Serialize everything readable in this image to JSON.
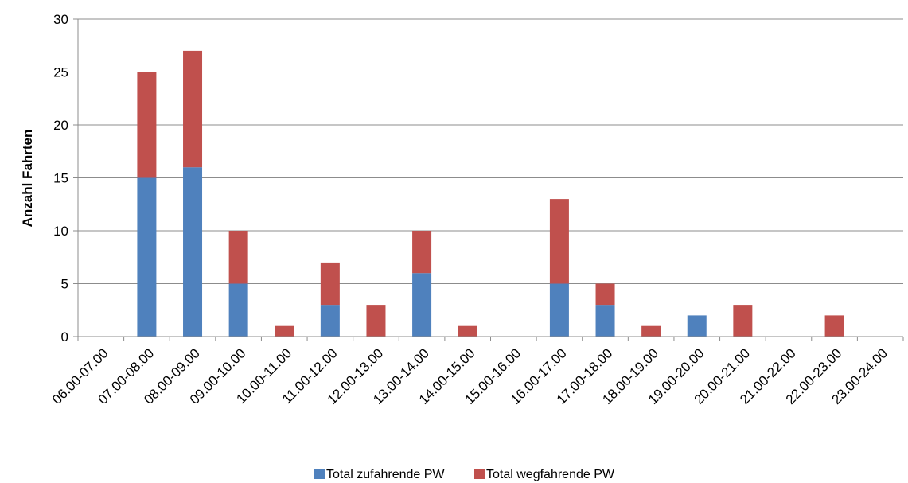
{
  "chart_data": {
    "type": "bar",
    "stacked": true,
    "categories": [
      "06.00-07.00",
      "07.00-08.00",
      "08.00-09.00",
      "09.00-10.00",
      "10.00-11.00",
      "11.00-12.00",
      "12.00-13.00",
      "13.00-14.00",
      "14.00-15.00",
      "15.00-16.00",
      "16.00-17.00",
      "17.00-18.00",
      "18.00-19.00",
      "19.00-20.00",
      "20.00-21.00",
      "21.00-22.00",
      "22.00-23.00",
      "23.00-24.00"
    ],
    "series": [
      {
        "name": "Total zufahrende PW",
        "color": "#4f81bd",
        "values": [
          0,
          15,
          16,
          5,
          0,
          3,
          0,
          6,
          0,
          0,
          5,
          3,
          0,
          2,
          0,
          0,
          0,
          0
        ]
      },
      {
        "name": "Total wegfahrende PW",
        "color": "#c0504d",
        "values": [
          0,
          10,
          11,
          5,
          1,
          4,
          3,
          4,
          1,
          0,
          8,
          2,
          1,
          0,
          3,
          0,
          2,
          0
        ]
      }
    ],
    "title": "",
    "xlabel": "",
    "ylabel": "Anzahl Fahrten",
    "ylim": [
      0,
      30
    ],
    "yticks": [
      "0",
      "5",
      "10",
      "15",
      "20",
      "25",
      "30"
    ],
    "grid": true,
    "legend_position": "bottom"
  }
}
